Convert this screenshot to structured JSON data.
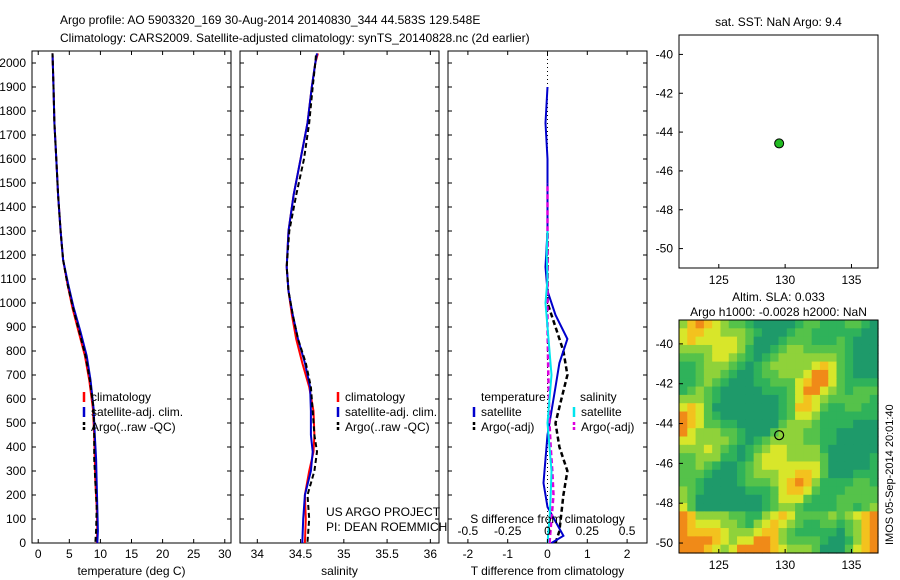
{
  "header": {
    "line1": "Argo profile: AO 5903320_169 30-Aug-2014 20140830_344 44.583S 129.548E",
    "line2": "Climatology: CARS2009. Satellite-adjusted climatology: synTS_20140828.nc (2d earlier)"
  },
  "footer_credit": "IMOS 05-Sep-2014 20:01:40",
  "colors": {
    "climatology": "#ff0000",
    "satellite": "#0000cc",
    "argo": "#000000",
    "salinity_sat": "#00e5ee",
    "salinity_argo": "#dd00dd",
    "marker": "#22bb22"
  },
  "chart_data": [
    {
      "type": "line",
      "id": "temperature",
      "xlabel": "temperature (deg C)",
      "ylabel": "",
      "xlim": [
        -1,
        31
      ],
      "ylim": [
        2050,
        0
      ],
      "xticks": [
        "0",
        "5",
        "10",
        "15",
        "20",
        "25",
        "30"
      ],
      "yticks": [
        "0",
        "100",
        "200",
        "300",
        "400",
        "500",
        "600",
        "700",
        "800",
        "900",
        "1000",
        "1100",
        "1200",
        "1300",
        "1400",
        "1500",
        "1600",
        "1700",
        "1800",
        "1900",
        "2000"
      ],
      "legend": [
        "climatology",
        "satellite-adj. clim.",
        "Argo(..raw -QC)"
      ],
      "legend_position": "lower-right",
      "series": [
        {
          "name": "climatology",
          "x": [
            9.4,
            9.5,
            9.4,
            9.2,
            9.1,
            9.0,
            8.8,
            8.2,
            7.5,
            6.5,
            5.5,
            4.7,
            4.0,
            3.6,
            3.2,
            2.9,
            2.6,
            2.45,
            2.35,
            2.3
          ],
          "y": [
            0,
            50,
            150,
            250,
            350,
            450,
            560,
            680,
            780,
            880,
            980,
            1080,
            1180,
            1300,
            1450,
            1600,
            1750,
            1900,
            2000,
            2040
          ]
        },
        {
          "name": "satellite-adj. clim.",
          "x": [
            9.5,
            9.6,
            9.5,
            9.4,
            9.3,
            9.1,
            8.9,
            8.4,
            7.8,
            6.8,
            5.7,
            4.8,
            4.0,
            3.6,
            3.2,
            2.9,
            2.6,
            2.45,
            2.35,
            2.3
          ],
          "y": [
            0,
            50,
            150,
            250,
            350,
            450,
            560,
            680,
            780,
            880,
            980,
            1080,
            1180,
            1300,
            1450,
            1600,
            1750,
            1900,
            2000,
            2040
          ]
        },
        {
          "name": "Argo(..raw -QC)",
          "x": [
            9.2,
            9.3,
            9.4,
            9.2,
            9.0,
            9.0,
            8.9,
            8.3,
            7.6,
            6.6,
            5.6,
            4.7,
            4.0,
            3.6,
            3.2,
            2.9,
            2.6,
            2.45,
            2.35,
            2.3
          ],
          "y": [
            5,
            50,
            150,
            250,
            350,
            450,
            560,
            680,
            780,
            880,
            980,
            1080,
            1180,
            1300,
            1450,
            1600,
            1750,
            1900,
            2000,
            2040
          ]
        }
      ]
    },
    {
      "type": "line",
      "id": "salinity",
      "xlabel": "salinity",
      "ylabel": "",
      "xlim": [
        33.8,
        36.1
      ],
      "ylim": [
        2050,
        0
      ],
      "xticks": [
        "34",
        "34.5",
        "35",
        "35.5",
        "36"
      ],
      "legend": [
        "climatology",
        "satellite-adj. clim.",
        "Argo(..raw -QC)"
      ],
      "legend_position": "lower-right",
      "annotations": [
        "US ARGO PROJECT",
        "PI: DEAN ROEMMICH"
      ],
      "series": [
        {
          "name": "climatology",
          "x": [
            34.55,
            34.56,
            34.55,
            34.6,
            34.65,
            34.66,
            34.65,
            34.6,
            34.52,
            34.45,
            34.4,
            34.36,
            34.34,
            34.36,
            34.42,
            34.5,
            34.58,
            34.63,
            34.67,
            34.7
          ],
          "y": [
            0,
            100,
            200,
            300,
            380,
            450,
            550,
            650,
            750,
            850,
            950,
            1050,
            1150,
            1300,
            1450,
            1600,
            1750,
            1900,
            2000,
            2040
          ]
        },
        {
          "name": "satellite-adj. clim.",
          "x": [
            34.52,
            34.53,
            34.55,
            34.62,
            34.64,
            34.62,
            34.62,
            34.61,
            34.55,
            34.47,
            34.41,
            34.36,
            34.34,
            34.36,
            34.42,
            34.5,
            34.58,
            34.63,
            34.67,
            34.69
          ],
          "y": [
            0,
            100,
            200,
            300,
            380,
            450,
            550,
            650,
            750,
            850,
            950,
            1050,
            1150,
            1300,
            1450,
            1600,
            1750,
            1900,
            2000,
            2040
          ]
        },
        {
          "name": "Argo(..raw -QC)",
          "x": [
            34.58,
            34.6,
            34.58,
            34.66,
            34.69,
            34.66,
            34.64,
            34.62,
            34.56,
            34.47,
            34.41,
            34.36,
            34.34,
            34.37,
            34.45,
            34.54,
            34.6,
            34.64,
            34.67,
            34.68
          ],
          "y": [
            5,
            100,
            200,
            300,
            380,
            450,
            550,
            650,
            750,
            850,
            950,
            1050,
            1150,
            1300,
            1450,
            1600,
            1750,
            1900,
            2000,
            2040
          ]
        }
      ]
    },
    {
      "type": "line",
      "id": "difference",
      "xlabel": "T difference from climatology",
      "xlabel_top": "S difference from climatology",
      "xlim": [
        -2.5,
        2.5
      ],
      "ylim": [
        2050,
        0
      ],
      "xticks": [
        "-2",
        "-1",
        "0",
        "1",
        "2"
      ],
      "xticks_top": [
        "-0.5",
        "-0.25",
        "0",
        "0.25",
        "0.5"
      ],
      "legend_temperature_title": "temperature",
      "legend_salinity_title": "salinity",
      "legend": [
        "satellite",
        "Argo(-adj)",
        "satellite",
        "Argo(-adj)"
      ],
      "legend_position": "lower",
      "series": [
        {
          "name": "temperature satellite",
          "x": [
            0.1,
            0.4,
            0.0,
            -0.1,
            -0.05,
            0.0,
            0.1,
            0.2,
            0.3,
            0.5,
            0.2,
            0.0,
            -0.05,
            0.0,
            0.0,
            0.0,
            -0.05,
            0.0
          ],
          "y": [
            0,
            30,
            150,
            250,
            350,
            450,
            550,
            650,
            750,
            850,
            950,
            1050,
            1150,
            1300,
            1450,
            1600,
            1750,
            1900
          ]
        },
        {
          "name": "temperature Argo(-adj)",
          "x": [
            0.2,
            0.3,
            0.4,
            0.5,
            0.3,
            0.2,
            0.35,
            0.5,
            0.4,
            0.2,
            0.0,
            0.0,
            0.0,
            0.0
          ],
          "y": [
            0,
            50,
            200,
            300,
            400,
            500,
            600,
            700,
            800,
            900,
            1000,
            1100,
            1200,
            1300
          ]
        },
        {
          "name": "salinity satellite",
          "x": [
            0.0,
            0.05,
            0.08,
            0.1,
            0.05,
            0.0,
            0.05,
            0.1,
            0.05,
            0.0,
            -0.05,
            0.0,
            -0.02,
            0.0
          ],
          "y": [
            0,
            100,
            200,
            300,
            400,
            500,
            600,
            700,
            800,
            900,
            1000,
            1100,
            1200,
            1300
          ]
        },
        {
          "name": "salinity Argo(-adj)",
          "x": [
            0.05,
            0.1,
            0.15,
            0.12,
            0.08,
            0.05,
            0.02,
            0.0,
            0.0,
            0.0,
            0.0
          ],
          "y": [
            0,
            100,
            200,
            300,
            400,
            500,
            700,
            900,
            1100,
            1300,
            1500
          ]
        }
      ]
    },
    {
      "type": "scatter",
      "id": "sst_map",
      "title": "sat. SST: NaN  Argo: 9.4",
      "xlim": [
        122,
        137
      ],
      "ylim": [
        -51,
        -39
      ],
      "xticks": [
        "125",
        "130",
        "135"
      ],
      "yticks": [
        "-40",
        "-42",
        "-44",
        "-46",
        "-48",
        "-50"
      ],
      "series": [
        {
          "name": "",
          "x": [
            129.548
          ],
          "y": [
            -44.583
          ]
        }
      ]
    },
    {
      "type": "heatmap",
      "id": "sla_map",
      "title": "Altim. SLA: 0.033",
      "subtitle": "Argo h1000: -0.0028 h2000: NaN",
      "xlim": [
        122,
        137
      ],
      "ylim": [
        -50.5,
        -38.8
      ],
      "xticks": [
        "125",
        "130",
        "135"
      ],
      "yticks": [
        "-40",
        "-42",
        "-44",
        "-46",
        "-48",
        "-50"
      ],
      "series": [
        {
          "name": "",
          "x": [
            129.548
          ],
          "y": [
            -44.583
          ]
        }
      ]
    }
  ]
}
